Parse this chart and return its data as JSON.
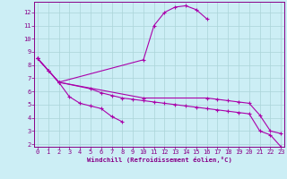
{
  "background_color": "#cceef5",
  "grid_color": "#aad4d8",
  "line_color": "#aa00aa",
  "tick_color": "#880088",
  "xlim": [
    -0.3,
    23.3
  ],
  "ylim": [
    1.8,
    12.8
  ],
  "xticks": [
    0,
    1,
    2,
    3,
    4,
    5,
    6,
    7,
    8,
    9,
    10,
    11,
    12,
    13,
    14,
    15,
    16,
    17,
    18,
    19,
    20,
    21,
    22,
    23
  ],
  "yticks": [
    2,
    3,
    4,
    5,
    6,
    7,
    8,
    9,
    10,
    11,
    12
  ],
  "xlabel": "Windchill (Refroidissement éolien,°C)",
  "curves": [
    {
      "x": [
        0,
        1,
        2,
        10,
        11,
        12,
        13,
        14,
        15,
        16
      ],
      "y": [
        8.5,
        7.6,
        6.7,
        8.4,
        11.0,
        12.0,
        12.4,
        12.5,
        12.2,
        11.5
      ]
    },
    {
      "x": [
        0,
        1,
        2,
        3,
        4,
        5,
        6,
        7,
        8
      ],
      "y": [
        8.5,
        7.6,
        6.7,
        5.6,
        5.1,
        4.9,
        4.7,
        4.1,
        3.7
      ]
    },
    {
      "x": [
        0,
        2,
        10,
        16,
        17,
        18,
        19,
        20,
        21,
        22,
        23
      ],
      "y": [
        8.5,
        6.7,
        5.5,
        5.5,
        5.4,
        5.3,
        5.2,
        5.1,
        4.2,
        3.0,
        2.8
      ]
    },
    {
      "x": [
        0,
        2,
        5,
        6,
        7,
        8,
        9,
        10,
        11,
        12,
        13,
        14,
        15,
        16,
        17,
        18,
        19,
        20,
        21,
        22,
        23
      ],
      "y": [
        8.5,
        6.7,
        6.2,
        5.9,
        5.7,
        5.5,
        5.4,
        5.3,
        5.2,
        5.1,
        5.0,
        4.9,
        4.8,
        4.7,
        4.6,
        4.5,
        4.4,
        4.3,
        3.0,
        2.7,
        1.8
      ]
    }
  ]
}
